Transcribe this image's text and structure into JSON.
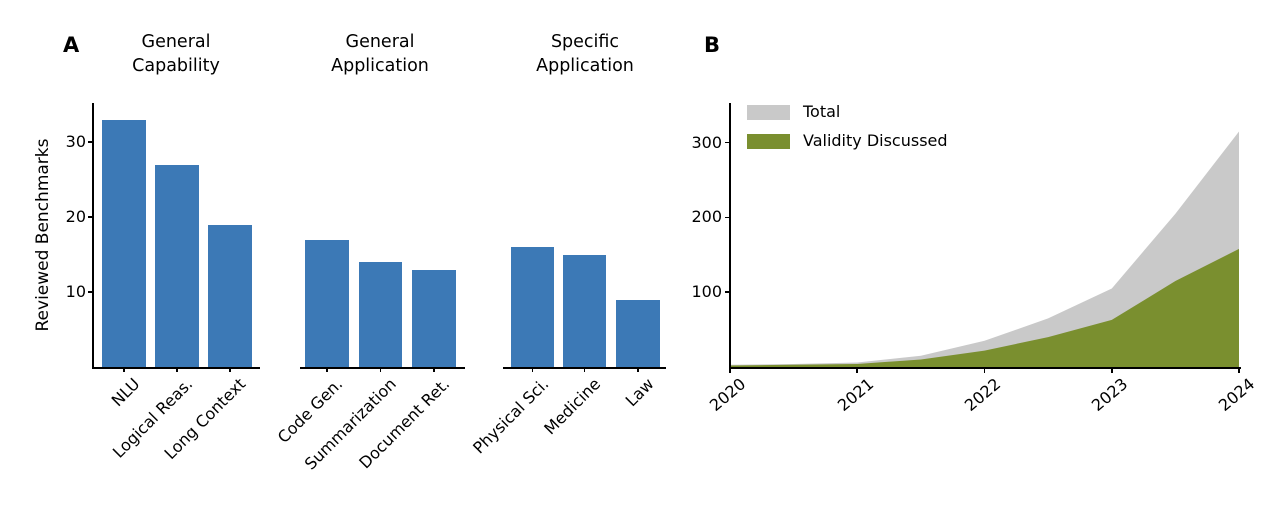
{
  "panels": {
    "a": {
      "letter": "A"
    },
    "b": {
      "letter": "B"
    }
  },
  "chart_data": [
    {
      "id": "reviewed-benchmarks-by-category",
      "type": "bar",
      "title": "",
      "ylabel": "Reviewed Benchmarks",
      "xlabel": "",
      "ylim": [
        0,
        35
      ],
      "yticks": [
        10,
        20,
        30
      ],
      "grid": false,
      "bar_color": "#3c79b6",
      "groups": [
        {
          "title": "General\nCapability",
          "categories": [
            "NLU",
            "Logical Reas.",
            "Long Context"
          ],
          "values": [
            33,
            27,
            19
          ]
        },
        {
          "title": "General\nApplication",
          "categories": [
            "Code Gen.",
            "Summarization",
            "Document Ret."
          ],
          "values": [
            17,
            14,
            13
          ]
        },
        {
          "title": "Specific\nApplication",
          "categories": [
            "Physical Sci.",
            "Medicine",
            "Law"
          ],
          "values": [
            16,
            15,
            9
          ]
        }
      ]
    },
    {
      "id": "benchmarks-over-time",
      "type": "area",
      "title": "",
      "xlabel": "",
      "ylabel": "",
      "x": [
        2020,
        2020.5,
        2021,
        2021.5,
        2022,
        2022.5,
        2023,
        2023.5,
        2024
      ],
      "xticks": [
        2020,
        2021,
        2022,
        2023,
        2024
      ],
      "yticks": [
        100,
        200,
        300
      ],
      "ylim": [
        0,
        350
      ],
      "grid": false,
      "legend_position": "upper left",
      "series": [
        {
          "name": "Total",
          "color": "#c9c9c9",
          "values": [
            3,
            4,
            6,
            15,
            35,
            65,
            105,
            205,
            315
          ]
        },
        {
          "name": "Validity Discussed",
          "color": "#7a8f2f",
          "values": [
            2,
            3,
            4,
            10,
            22,
            40,
            63,
            115,
            158
          ]
        }
      ]
    }
  ]
}
